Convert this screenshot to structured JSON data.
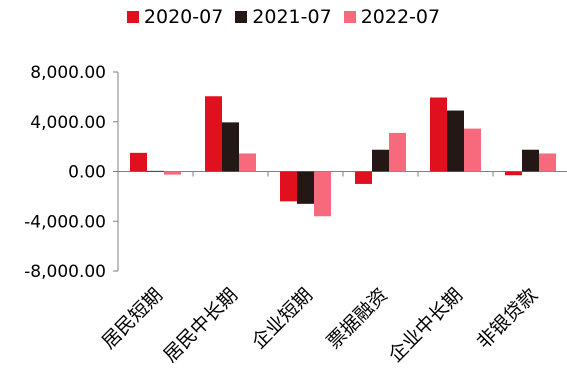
{
  "chart_data": {
    "type": "bar",
    "categories": [
      "居民短期",
      "居民中长期",
      "企业短期",
      "票据融资",
      "企业中长期",
      "非银贷款"
    ],
    "series": [
      {
        "name": "2020-07",
        "color": "#e0101f",
        "values": [
          1500,
          6050,
          -2400,
          -1000,
          5950,
          -300
        ]
      },
      {
        "name": "2021-07",
        "color": "#231815",
        "values": [
          50,
          3950,
          -2600,
          1750,
          4900,
          1750
        ]
      },
      {
        "name": "2022-07",
        "color": "#f76a7e",
        "values": [
          -250,
          1450,
          -3600,
          3100,
          3450,
          1450
        ]
      }
    ],
    "yticks": [
      "8,000.00",
      "4,000.00",
      "0.00",
      "-4,000.00",
      "-8,000.00"
    ],
    "ylim": [
      -8000,
      8000
    ],
    "legend_position": "top-center",
    "grid": false
  }
}
